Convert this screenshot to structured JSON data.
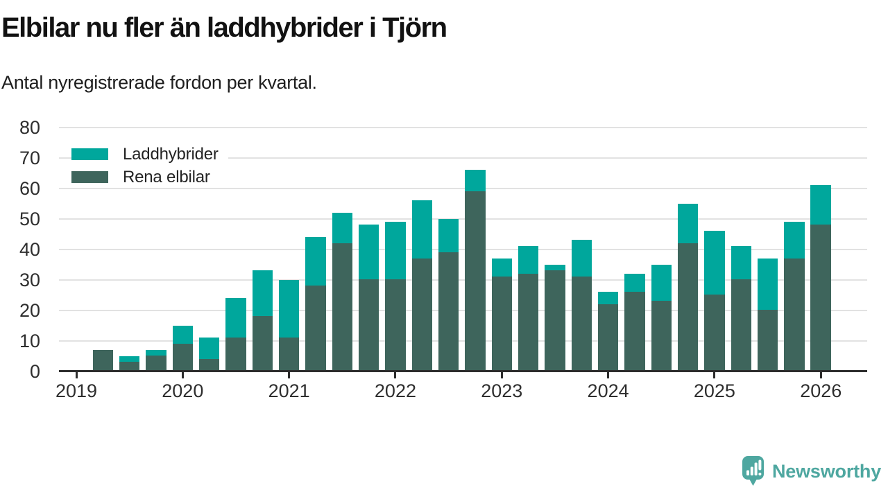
{
  "header": {
    "title": "Elbilar nu fler än laddhybrider i Tjörn",
    "subtitle": "Antal nyregistrerade fordon per kvartal."
  },
  "legend": {
    "items": [
      {
        "label": "Laddhybrider",
        "color": "#00a79c"
      },
      {
        "label": "Rena elbilar",
        "color": "#3e655c"
      }
    ]
  },
  "branding": {
    "name": "Newsworthy",
    "color": "#4ea7a0"
  },
  "colors": {
    "laddhybrider": "#00a79c",
    "rena_elbilar": "#3e655c",
    "axis": "#2d2d2d",
    "gridline": "#e2e2e2",
    "label_text": "#2e2e2e"
  },
  "chart_data": {
    "type": "bar",
    "stacked": true,
    "title": "Elbilar nu fler än laddhybrider i Tjörn",
    "subtitle": "Antal nyregistrerade fordon per kvartal.",
    "xlabel": "",
    "ylabel": "",
    "ylim": [
      0,
      80
    ],
    "yticks": [
      0,
      10,
      20,
      30,
      40,
      50,
      60,
      70,
      80
    ],
    "grid": true,
    "legend_position": "top-left",
    "x": [
      "2019-Q1",
      "2019-Q2",
      "2019-Q3",
      "2019-Q4",
      "2020-Q1",
      "2020-Q2",
      "2020-Q3",
      "2020-Q4",
      "2021-Q1",
      "2021-Q2",
      "2021-Q3",
      "2021-Q4",
      "2022-Q1",
      "2022-Q2",
      "2022-Q3",
      "2022-Q4",
      "2023-Q1",
      "2023-Q2",
      "2023-Q3",
      "2023-Q4",
      "2024-Q1",
      "2024-Q2",
      "2024-Q3",
      "2024-Q4",
      "2025-Q1",
      "2025-Q2",
      "2025-Q3",
      "2025-Q4",
      "2026-Q1"
    ],
    "year_labels": [
      "2019",
      "2020",
      "2021",
      "2022",
      "2023",
      "2024",
      "2025",
      "2026"
    ],
    "series": [
      {
        "name": "Rena elbilar",
        "color": "#3e655c",
        "values": [
          0,
          7,
          3,
          5,
          9,
          4,
          11,
          18,
          11,
          28,
          42,
          30,
          30,
          37,
          39,
          59,
          31,
          32,
          33,
          31,
          22,
          26,
          23,
          42,
          25,
          30,
          20,
          37,
          48
        ]
      },
      {
        "name": "Laddhybrider",
        "color": "#00a79c",
        "values": [
          0,
          0,
          2,
          2,
          6,
          7,
          13,
          15,
          19,
          16,
          10,
          18,
          19,
          19,
          11,
          7,
          6,
          9,
          2,
          12,
          4,
          6,
          12,
          13,
          21,
          11,
          17,
          12,
          13
        ]
      }
    ]
  }
}
